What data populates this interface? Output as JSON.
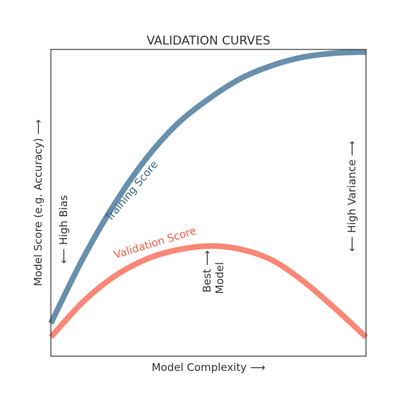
{
  "chart_data": {
    "type": "line",
    "title": "VALIDATION CURVES",
    "xlabel": "Model Complexity  ⟶",
    "ylabel": "Model Score (e.g. Accuracy)  ⟶",
    "xlim": [
      0,
      1
    ],
    "ylim": [
      0,
      1
    ],
    "grid": false,
    "ticks": false,
    "series": [
      {
        "name": "Training Score",
        "color": "#6890ad",
        "label_color": "#3e6989",
        "x": [
          0,
          0.1,
          0.2,
          0.3,
          0.4,
          0.5,
          0.6,
          0.7,
          0.8,
          0.9,
          1.0
        ],
        "y": [
          0.107,
          0.315,
          0.493,
          0.641,
          0.756,
          0.838,
          0.904,
          0.947,
          0.975,
          0.988,
          0.992
        ]
      },
      {
        "name": "Validation Score",
        "color": "#fa8776",
        "label_color": "#f15f48",
        "x": [
          0,
          0.1,
          0.2,
          0.3,
          0.4,
          0.5,
          0.6,
          0.7,
          0.8,
          0.9,
          1.0
        ],
        "y": [
          0.062,
          0.175,
          0.259,
          0.315,
          0.346,
          0.359,
          0.349,
          0.314,
          0.245,
          0.157,
          0.062
        ]
      }
    ],
    "annotations": {
      "training_label": "Training Score",
      "validation_label": "Validation Score",
      "high_bias": "⟵  High Bias",
      "high_variance": "⟵  High Variance  ⟶",
      "best_model_line1": "Best ⟶",
      "best_model_line2": "Model"
    }
  }
}
